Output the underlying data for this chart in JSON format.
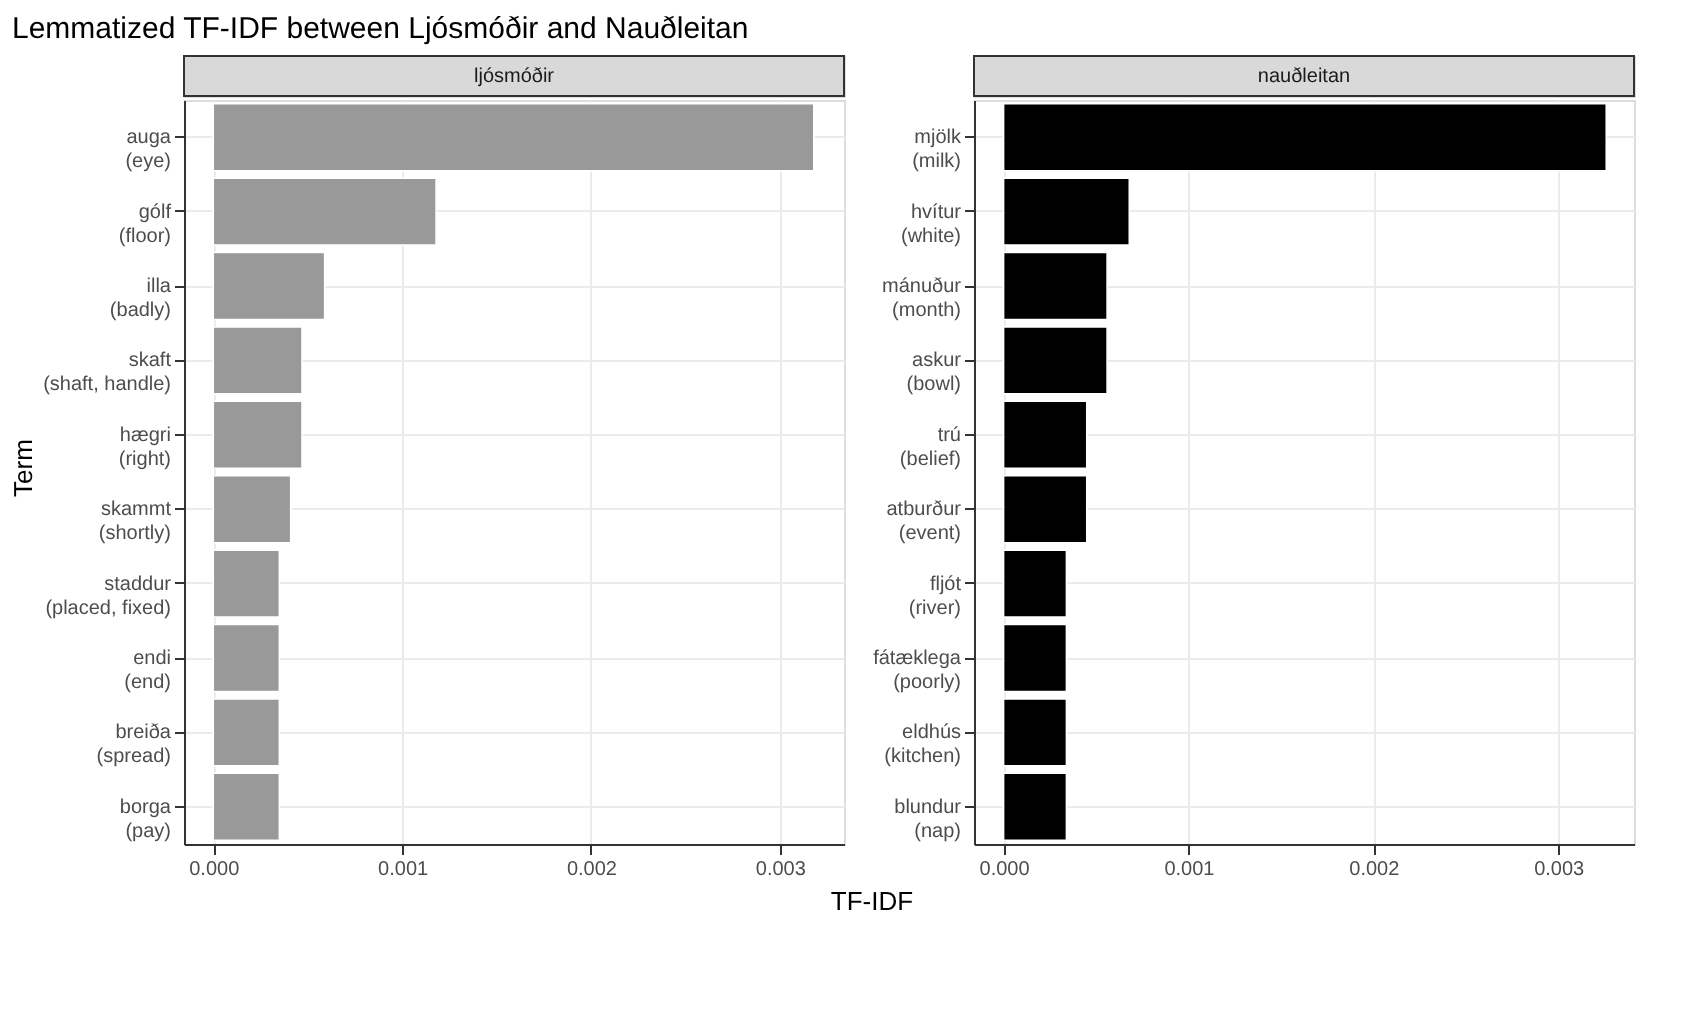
{
  "chart_data": [
    {
      "type": "bar",
      "orientation": "horizontal",
      "title": "ljósmóðir",
      "ylabel": "Term",
      "annotations": [
        "Lemmatized TF-IDF between Ljósmóðir and Nauðleitan"
      ],
      "categories": [
        "auga\n(eye)",
        "gólf\n(floor)",
        "illa\n(badly)",
        "skaft\n(shaft, handle)",
        "hægri\n(right)",
        "skammt\n(shortly)",
        "staddur\n(placed, fixed)",
        "endi\n(end)",
        "breiða\n(spread)",
        "borga\n(pay)"
      ],
      "values": [
        0.00318,
        0.00118,
        0.00059,
        0.00047,
        0.00047,
        0.00041,
        0.00035,
        0.00035,
        0.00035,
        0.00035
      ],
      "color": "#999999",
      "xlim": [
        -0.000155,
        0.00334
      ],
      "xticks": [
        {
          "value": 0,
          "label": "0.000"
        },
        0.001,
        0.002,
        0.003
      ],
      "grid": true
    },
    {
      "type": "bar",
      "orientation": "horizontal",
      "title": "nauðleitan",
      "xlabel": "TF-IDF",
      "categories": [
        "mjölk\n(milk)",
        "hvítur\n(white)",
        "mánuður\n(month)",
        "askur\n(bowl)",
        "trú\n(belief)",
        "atburður\n(event)",
        "fljót\n(river)",
        "fátæklega\n(poorly)",
        "eldhús\n(kitchen)",
        "blundur\n(nap)"
      ],
      "values": [
        0.00326,
        0.00068,
        0.00056,
        0.00056,
        0.00045,
        0.00045,
        0.00034,
        0.00034,
        0.00034,
        0.00034
      ],
      "color": "#000000",
      "xlim": [
        -0.00016,
        0.00341
      ],
      "xticks": [
        {
          "value": 0,
          "label": "0.000"
        },
        0.001,
        0.002,
        0.003
      ],
      "grid": true
    }
  ]
}
